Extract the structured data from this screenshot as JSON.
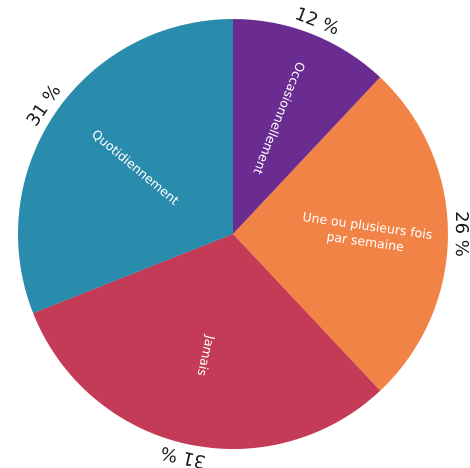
{
  "chart_data": {
    "type": "pie",
    "title": "",
    "start_angle_deg": 0,
    "direction": "clockwise",
    "slices": [
      {
        "label": "Occasionnellement",
        "label_lines": [
          "Occasionnellement"
        ],
        "value": 12,
        "display": "12 %",
        "color": "#6a2c91"
      },
      {
        "label": "Une ou plusieurs fois par semaine",
        "label_lines": [
          "Une ou plusieurs fois",
          "par semaine"
        ],
        "value": 26,
        "display": "26 %",
        "color": "#f28346"
      },
      {
        "label": "Jamais",
        "label_lines": [
          "Jamais"
        ],
        "value": 31,
        "display": "31 %",
        "color": "#c43b57"
      },
      {
        "label": "Quotidiennement",
        "label_lines": [
          "Quotidiennement"
        ],
        "value": 31,
        "display": "31 %",
        "color": "#2a8cad"
      }
    ]
  }
}
